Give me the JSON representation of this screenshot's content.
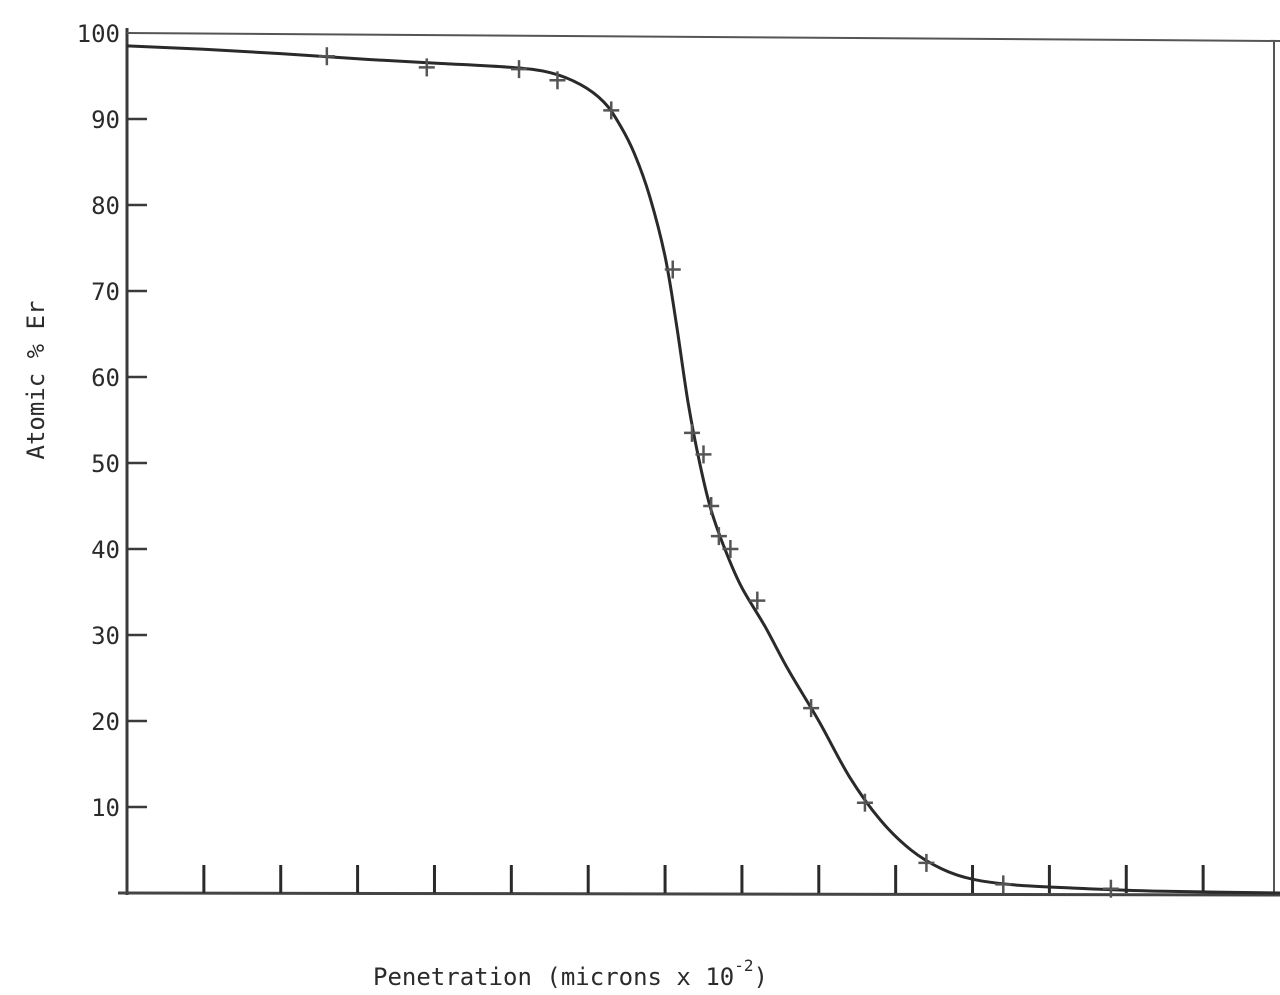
{
  "chart_data": {
    "type": "scatter",
    "title": "",
    "xlabel": "Penetration (microns x 10",
    "xlabel_exponent": "-2",
    "xlabel_close": ")",
    "ylabel": "Atomic % Er",
    "ylim": [
      0,
      100
    ],
    "xlim": [
      0,
      15
    ],
    "y_ticks": [
      10,
      20,
      30,
      40,
      50,
      60,
      70,
      80,
      90,
      100
    ],
    "x_ticks": [
      1,
      2,
      3,
      4,
      5,
      6,
      7,
      8,
      9,
      10,
      11,
      12,
      13,
      14
    ],
    "x_tick_labels_shown": false,
    "grid": false,
    "series": [
      {
        "points": [
          {
            "x": 2.6,
            "y": 97.3
          },
          {
            "x": 3.9,
            "y": 96.0
          },
          {
            "x": 5.1,
            "y": 95.8
          },
          {
            "x": 5.6,
            "y": 94.5
          },
          {
            "x": 6.3,
            "y": 91.0
          },
          {
            "x": 7.1,
            "y": 72.5
          },
          {
            "x": 7.35,
            "y": 53.5
          },
          {
            "x": 7.5,
            "y": 51.0
          },
          {
            "x": 7.6,
            "y": 45.0
          },
          {
            "x": 7.7,
            "y": 41.5
          },
          {
            "x": 7.85,
            "y": 40.0
          },
          {
            "x": 8.2,
            "y": 34.0
          },
          {
            "x": 8.9,
            "y": 21.5
          },
          {
            "x": 9.6,
            "y": 10.5
          },
          {
            "x": 10.4,
            "y": 3.5
          },
          {
            "x": 11.4,
            "y": 1.0
          },
          {
            "x": 12.8,
            "y": 0.5
          }
        ],
        "fit_curve": [
          [
            0.0,
            98.5
          ],
          [
            1.0,
            98.1
          ],
          [
            2.0,
            97.6
          ],
          [
            3.0,
            97.0
          ],
          [
            4.0,
            96.5
          ],
          [
            5.0,
            96.0
          ],
          [
            5.5,
            95.4
          ],
          [
            5.9,
            94.0
          ],
          [
            6.2,
            92.0
          ],
          [
            6.4,
            89.5
          ],
          [
            6.6,
            86.0
          ],
          [
            6.8,
            81.0
          ],
          [
            7.0,
            74.0
          ],
          [
            7.15,
            66.0
          ],
          [
            7.3,
            57.0
          ],
          [
            7.45,
            50.0
          ],
          [
            7.6,
            44.5
          ],
          [
            7.8,
            39.5
          ],
          [
            8.0,
            35.5
          ],
          [
            8.3,
            31.0
          ],
          [
            8.6,
            26.0
          ],
          [
            9.0,
            20.0
          ],
          [
            9.4,
            13.5
          ],
          [
            9.8,
            8.5
          ],
          [
            10.2,
            5.0
          ],
          [
            10.6,
            2.8
          ],
          [
            11.0,
            1.6
          ],
          [
            11.6,
            0.9
          ],
          [
            12.5,
            0.5
          ],
          [
            13.5,
            0.2
          ],
          [
            15.0,
            0.0
          ]
        ]
      }
    ]
  }
}
